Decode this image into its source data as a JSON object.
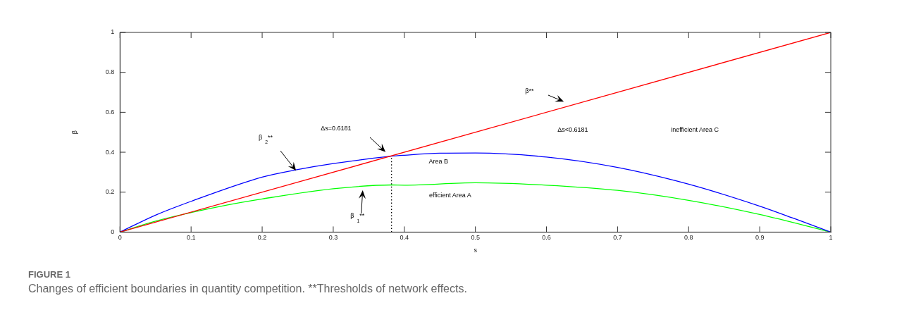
{
  "chart_data": {
    "type": "line",
    "xlabel": "s",
    "ylabel": "β",
    "xlim": [
      0,
      1
    ],
    "ylim": [
      0,
      1
    ],
    "xticks": [
      0,
      0.1,
      0.2,
      0.3,
      0.4,
      0.5,
      0.6,
      0.7,
      0.8,
      0.9,
      1
    ],
    "yticks": [
      0,
      0.2,
      0.4,
      0.6,
      0.8,
      1
    ],
    "grid": false,
    "legend": false,
    "marker": "none",
    "series": [
      {
        "color": "#ff0000",
        "x": [
          0,
          1
        ],
        "values": [
          0,
          1
        ]
      },
      {
        "color": "#0000ff",
        "x": [
          0,
          0.05,
          0.1,
          0.2,
          0.25,
          0.3,
          0.382,
          0.4,
          0.45,
          0.5,
          0.6,
          0.7,
          0.8,
          0.9,
          0.95,
          1
        ],
        "values": [
          0,
          0.085,
          0.154,
          0.275,
          0.313,
          0.343,
          0.38,
          0.385,
          0.395,
          0.396,
          0.376,
          0.324,
          0.24,
          0.13,
          0.066,
          0
        ]
      },
      {
        "color": "#00ff00",
        "x": [
          0,
          0.05,
          0.15,
          0.2,
          0.3,
          0.382,
          0.4,
          0.5,
          0.6,
          0.7,
          0.8,
          0.9,
          1
        ],
        "values": [
          0,
          0.055,
          0.135,
          0.166,
          0.217,
          0.236,
          0.235,
          0.247,
          0.235,
          0.209,
          0.159,
          0.088,
          0
        ]
      },
      {
        "color": "#000000",
        "line_style": "dotted",
        "x": [
          0.382,
          0.382
        ],
        "values": [
          0,
          0.38
        ]
      }
    ],
    "annotations": [
      "β**",
      "β$_{2}$**",
      "Δs=0.6181",
      "β$_{1}$**",
      "Δs<0.6181",
      "inefficient Area C",
      "Area B",
      "efficient Area A",
      "FIGURE 1",
      "Changes of efficient boundaries in quantity competition. **Thresholds of network effects."
    ]
  }
}
